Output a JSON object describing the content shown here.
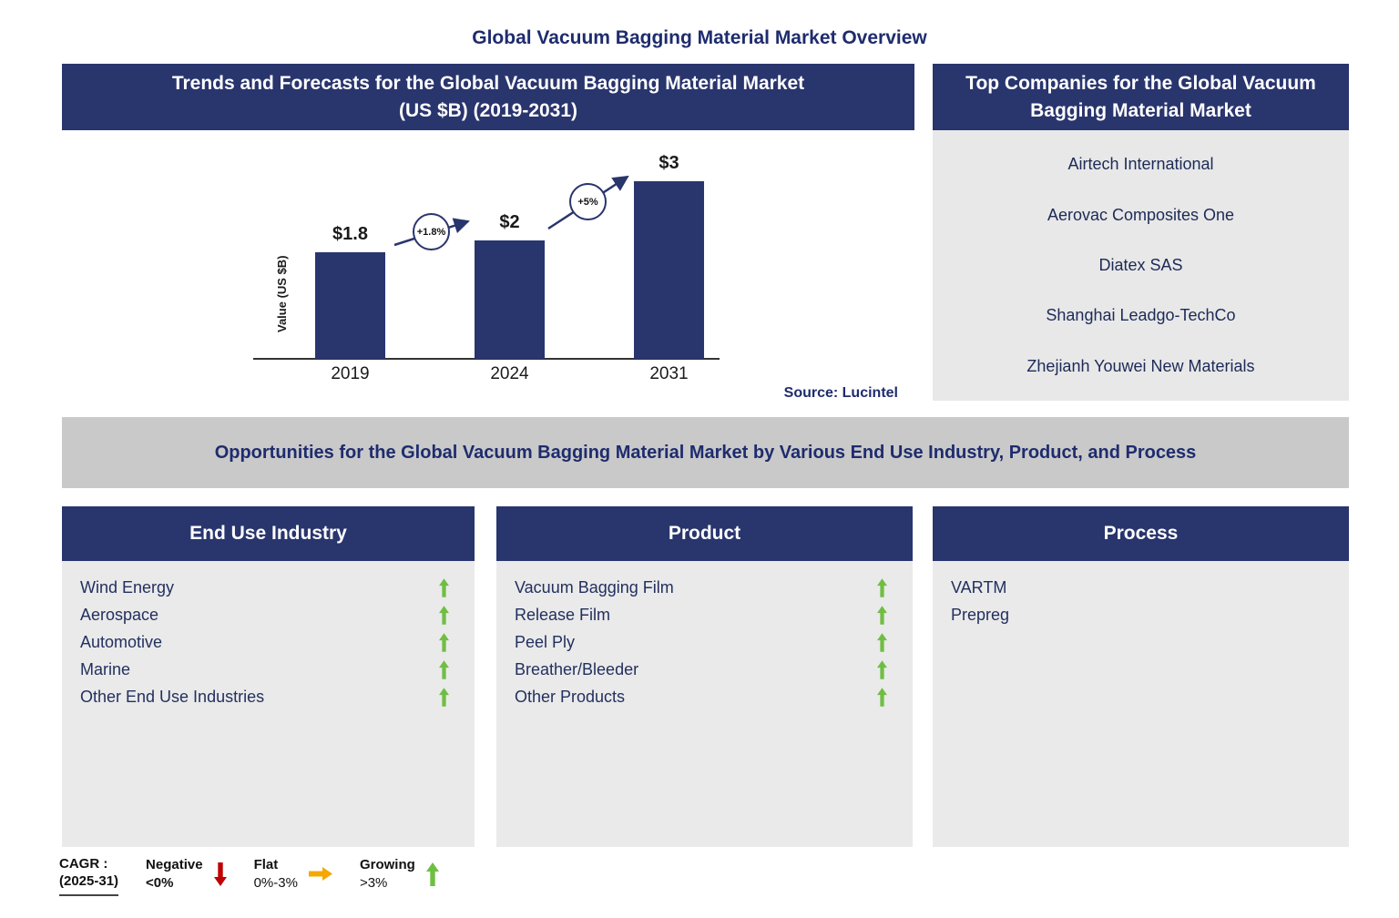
{
  "page_title": "Global Vacuum Bagging Material Market Overview",
  "colors": {
    "navy": "#29356d",
    "title_text": "#1e2c6e",
    "growing_green": "#6fbe44",
    "negative_red": "#c00000",
    "flat_orange": "#f5a800",
    "panel_gray": "#eaeaea",
    "band_gray": "#c9c9c9"
  },
  "trends_panel": {
    "title_line1": "Trends and Forecasts for the Global Vacuum Bagging Material Market",
    "title_line2": "(US $B) (2019-2031)",
    "ylabel": "Value (US $B)",
    "source": "Source: Lucintel"
  },
  "chart_data": {
    "type": "bar",
    "title": "Trends and Forecasts for the Global Vacuum Bagging Material Market (US $B) (2019-2031)",
    "categories": [
      "2019",
      "2024",
      "2031"
    ],
    "values": [
      1.8,
      2,
      3
    ],
    "value_labels": [
      "$1.8",
      "$2",
      "$3"
    ],
    "growth_labels": [
      "+1.8%",
      "+5%"
    ],
    "xlabel": "",
    "ylabel": "Value (US $B)",
    "ylim": [
      0,
      3.2
    ],
    "bar_color": "#29356d",
    "grid": false,
    "legend": "none"
  },
  "companies_panel": {
    "title": "Top Companies for the Global Vacuum Bagging Material Market",
    "companies": [
      "Airtech International",
      "Aerovac Composites One",
      "Diatex SAS",
      "Shanghai Leadgo-TechCo",
      "Zhejianh Youwei New Materials"
    ]
  },
  "opportunities_band": {
    "text": "Opportunities for the Global Vacuum Bagging Material Market by Various End Use Industry, Product, and Process"
  },
  "columns": {
    "end_use": {
      "title": "End Use Industry",
      "items": [
        {
          "label": "Wind Energy",
          "trend": "growing"
        },
        {
          "label": "Aerospace",
          "trend": "growing"
        },
        {
          "label": "Automotive",
          "trend": "growing"
        },
        {
          "label": "Marine",
          "trend": "growing"
        },
        {
          "label": "Other End Use Industries",
          "trend": "growing"
        }
      ]
    },
    "product": {
      "title": "Product",
      "items": [
        {
          "label": "Vacuum Bagging Film",
          "trend": "growing"
        },
        {
          "label": "Release Film",
          "trend": "growing"
        },
        {
          "label": "Peel Ply",
          "trend": "growing"
        },
        {
          "label": "Breather/Bleeder",
          "trend": "growing"
        },
        {
          "label": "Other Products",
          "trend": "growing"
        }
      ]
    },
    "process": {
      "title": "Process",
      "items": [
        {
          "label": "VARTM"
        },
        {
          "label": "Prepreg"
        }
      ]
    }
  },
  "legend": {
    "heading_line1": "CAGR :",
    "heading_line2": "(2025-31)",
    "items": [
      {
        "label": "Negative",
        "range": "<0%",
        "icon": "down-arrow",
        "color": "#c00000"
      },
      {
        "label": "Flat",
        "range": "0%-3%",
        "icon": "right-arrow",
        "color": "#f5a800"
      },
      {
        "label": "Growing",
        "range": ">3%",
        "icon": "up-arrow",
        "color": "#6fbe44"
      }
    ]
  }
}
